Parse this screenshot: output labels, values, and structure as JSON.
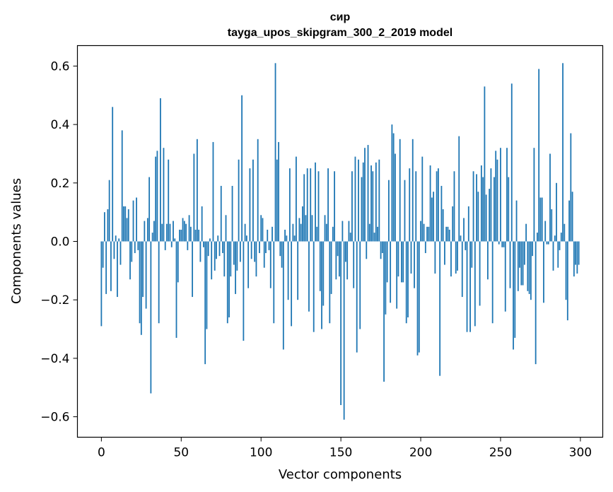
{
  "chart_data": {
    "type": "bar",
    "title": "сир",
    "subtitle": "tayga_upos_skipgram_300_2_2019 model",
    "xlabel": "Vector components",
    "ylabel": "Components values",
    "xlim": [
      -15,
      314
    ],
    "ylim": [
      -0.67,
      0.67
    ],
    "xticks": [
      0,
      50,
      100,
      150,
      200,
      250,
      300
    ],
    "xtick_labels": [
      "0",
      "50",
      "100",
      "150",
      "200",
      "250",
      "300"
    ],
    "yticks": [
      -0.6,
      -0.4,
      -0.2,
      0.0,
      0.2,
      0.4,
      0.6
    ],
    "ytick_labels": [
      "−0.6",
      "−0.4",
      "−0.2",
      "0.0",
      "0.2",
      "0.4",
      "0.6"
    ],
    "bar_color": "#1f77b4",
    "grid": false,
    "x": [
      0,
      1,
      2,
      3,
      4,
      5,
      6,
      7,
      8,
      9,
      10,
      11,
      12,
      13,
      14,
      15,
      16,
      17,
      18,
      19,
      20,
      21,
      22,
      23,
      24,
      25,
      26,
      27,
      28,
      29,
      30,
      31,
      32,
      33,
      34,
      35,
      36,
      37,
      38,
      39,
      40,
      41,
      42,
      43,
      44,
      45,
      46,
      47,
      48,
      49,
      50,
      51,
      52,
      53,
      54,
      55,
      56,
      57,
      58,
      59,
      60,
      61,
      62,
      63,
      64,
      65,
      66,
      67,
      68,
      69,
      70,
      71,
      72,
      73,
      74,
      75,
      76,
      77,
      78,
      79,
      80,
      81,
      82,
      83,
      84,
      85,
      86,
      87,
      88,
      89,
      90,
      91,
      92,
      93,
      94,
      95,
      96,
      97,
      98,
      99,
      100,
      101,
      102,
      103,
      104,
      105,
      106,
      107,
      108,
      109,
      110,
      111,
      112,
      113,
      114,
      115,
      116,
      117,
      118,
      119,
      120,
      121,
      122,
      123,
      124,
      125,
      126,
      127,
      128,
      129,
      130,
      131,
      132,
      133,
      134,
      135,
      136,
      137,
      138,
      139,
      140,
      141,
      142,
      143,
      144,
      145,
      146,
      147,
      148,
      149,
      150,
      151,
      152,
      153,
      154,
      155,
      156,
      157,
      158,
      159,
      160,
      161,
      162,
      163,
      164,
      165,
      166,
      167,
      168,
      169,
      170,
      171,
      172,
      173,
      174,
      175,
      176,
      177,
      178,
      179,
      180,
      181,
      182,
      183,
      184,
      185,
      186,
      187,
      188,
      189,
      190,
      191,
      192,
      193,
      194,
      195,
      196,
      197,
      198,
      199,
      200,
      201,
      202,
      203,
      204,
      205,
      206,
      207,
      208,
      209,
      210,
      211,
      212,
      213,
      214,
      215,
      216,
      217,
      218,
      219,
      220,
      221,
      222,
      223,
      224,
      225,
      226,
      227,
      228,
      229,
      230,
      231,
      232,
      233,
      234,
      235,
      236,
      237,
      238,
      239,
      240,
      241,
      242,
      243,
      244,
      245,
      246,
      247,
      248,
      249,
      250,
      251,
      252,
      253,
      254,
      255,
      256,
      257,
      258,
      259,
      260,
      261,
      262,
      263,
      264,
      265,
      266,
      267,
      268,
      269,
      270,
      271,
      272,
      273,
      274,
      275,
      276,
      277,
      278,
      279,
      280,
      281,
      282,
      283,
      284,
      285,
      286,
      287,
      288,
      289,
      290,
      291,
      292,
      293,
      294,
      295,
      296,
      297,
      298,
      299
    ],
    "values": [
      -0.29,
      -0.09,
      0.1,
      -0.18,
      0.11,
      0.21,
      -0.17,
      0.46,
      -0.06,
      0.02,
      -0.19,
      0.01,
      -0.08,
      0.38,
      0.12,
      0.12,
      0.08,
      0.11,
      -0.13,
      -0.07,
      0.14,
      -0.04,
      0.15,
      -0.03,
      -0.28,
      -0.32,
      -0.19,
      0.07,
      -0.23,
      0.08,
      0.22,
      -0.52,
      0.03,
      0.07,
      0.29,
      0.31,
      -0.28,
      0.49,
      0.06,
      0.32,
      -0.03,
      0.06,
      0.28,
      0.06,
      -0.02,
      0.07,
      0.01,
      -0.33,
      -0.14,
      0.04,
      0.04,
      0.08,
      0.07,
      0.06,
      -0.03,
      0.09,
      0.05,
      -0.19,
      0.3,
      0.04,
      0.35,
      0.04,
      -0.07,
      0.12,
      -0.02,
      -0.42,
      -0.3,
      -0.05,
      0.01,
      -0.13,
      0.34,
      -0.1,
      -0.06,
      0.02,
      -0.05,
      0.19,
      -0.04,
      -0.12,
      0.09,
      -0.28,
      -0.26,
      -0.12,
      0.19,
      -0.08,
      -0.18,
      -0.1,
      0.28,
      -0.07,
      0.5,
      -0.34,
      0.06,
      0.02,
      -0.16,
      0.25,
      -0.06,
      0.28,
      -0.07,
      -0.12,
      0.35,
      -0.04,
      0.09,
      0.08,
      -0.09,
      -0.04,
      0.04,
      -0.03,
      -0.16,
      0.05,
      -0.28,
      0.61,
      0.28,
      0.34,
      -0.05,
      -0.09,
      -0.37,
      0.04,
      0.02,
      -0.2,
      0.25,
      -0.29,
      0.06,
      0.02,
      0.29,
      -0.2,
      0.08,
      0.06,
      0.12,
      0.23,
      0.09,
      0.25,
      -0.24,
      0.25,
      0.09,
      -0.31,
      0.27,
      0.05,
      0.24,
      -0.17,
      -0.3,
      -0.22,
      0.09,
      0.06,
      0.25,
      -0.28,
      -0.18,
      0.05,
      0.24,
      -0.13,
      -0.05,
      -0.12,
      -0.56,
      0.07,
      -0.61,
      -0.07,
      -0.13,
      0.07,
      0.03,
      0.24,
      -0.16,
      0.29,
      -0.38,
      0.28,
      -0.3,
      0.22,
      0.27,
      0.32,
      -0.06,
      0.33,
      0.06,
      0.26,
      0.24,
      0.03,
      0.27,
      0.05,
      0.28,
      -0.06,
      -0.04,
      -0.48,
      -0.25,
      -0.14,
      0.21,
      -0.21,
      0.4,
      0.37,
      0.3,
      -0.23,
      -0.12,
      0.35,
      -0.14,
      -0.14,
      0.21,
      -0.28,
      -0.26,
      0.25,
      -0.11,
      0.35,
      -0.16,
      0.24,
      -0.39,
      -0.38,
      0.07,
      0.29,
      0.06,
      -0.04,
      0.05,
      0.05,
      0.26,
      0.15,
      0.17,
      -0.11,
      0.24,
      0.25,
      -0.46,
      0.19,
      0.11,
      -0.08,
      0.05,
      0.05,
      0.04,
      -0.12,
      0.12,
      0.24,
      -0.11,
      -0.1,
      0.36,
      0.02,
      -0.19,
      0.08,
      -0.03,
      -0.31,
      0.12,
      -0.31,
      -0.09,
      0.24,
      -0.29,
      0.23,
      0.17,
      -0.22,
      0.26,
      0.22,
      0.53,
      0.16,
      -0.13,
      0.18,
      0.25,
      -0.28,
      0.22,
      0.31,
      0.28,
      -0.01,
      0.32,
      -0.02,
      -0.02,
      -0.24,
      0.32,
      0.22,
      -0.16,
      0.54,
      -0.37,
      -0.33,
      0.14,
      -0.17,
      -0.09,
      -0.15,
      -0.15,
      -0.08,
      0.06,
      -0.17,
      -0.18,
      -0.2,
      -0.05,
      0.32,
      -0.42,
      0.03,
      0.59,
      0.15,
      0.15,
      -0.21,
      0.07,
      -0.01,
      -0.01,
      0.3,
      0.11,
      -0.1,
      0.02,
      0.2,
      -0.09,
      -0.03,
      0.03,
      0.61,
      0.06,
      -0.2,
      -0.27,
      0.14,
      0.37,
      0.17,
      -0.12,
      -0.08,
      -0.11,
      -0.08
    ]
  }
}
